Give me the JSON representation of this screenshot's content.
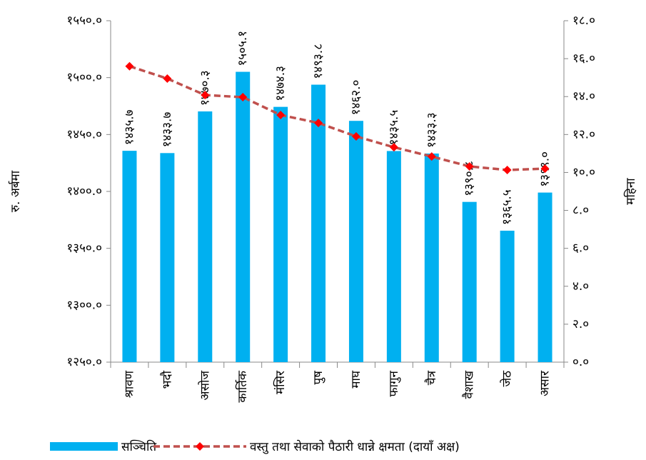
{
  "chart_data": {
    "type": "bar_line",
    "y_label": "रु. अर्बमा",
    "y2_label": "महिना",
    "categories": [
      "श्रावण",
      "भदौ",
      "असोज",
      "कार्तिक",
      "मंसिर",
      "पुष",
      "माघ",
      "फागुन",
      "चैत्र",
      "वैशाख",
      "जेठ",
      "असार"
    ],
    "series": [
      {
        "name": "सञ्चिति",
        "type": "bar",
        "color": "#00b0f0",
        "values": [
          1435.7,
          1433.7,
          1470.3,
          1505.1,
          1474.3,
          1493.8,
          1462.0,
          1435.5,
          1433.3,
          1390.8,
          1365.5,
          1399.0
        ],
        "value_labels": [
          "१४३५.७",
          "१४३३.७",
          "१४७०.३",
          "१५०५.१",
          "१४७४.३",
          "१४९३.८",
          "१४६२.०",
          "१४३५.५",
          "१४३३.३",
          "१३९०.८",
          "१३६५.५",
          "१३९९.०"
        ]
      },
      {
        "name": "वस्तु तथा सेवाको पैठारी धान्ने क्षमता (दायाँ अक्ष)",
        "type": "line",
        "axis": "y2",
        "color": "#c0504d",
        "marker_color": "#ff0000",
        "values": [
          15.6,
          14.95,
          14.08,
          13.97,
          13.03,
          12.61,
          11.9,
          11.33,
          10.84,
          10.32,
          10.13,
          10.2
        ]
      }
    ],
    "ylim": [
      1250,
      1550
    ],
    "yticks": [
      {
        "value": 1250,
        "label": "१२५०.०"
      },
      {
        "value": 1300,
        "label": "१३००.०"
      },
      {
        "value": 1350,
        "label": "१३५०.०"
      },
      {
        "value": 1400,
        "label": "१४००.०"
      },
      {
        "value": 1450,
        "label": "१४५०.०"
      },
      {
        "value": 1500,
        "label": "१५००.०"
      },
      {
        "value": 1550,
        "label": "१५५०.०"
      }
    ],
    "y2lim": [
      0,
      18
    ],
    "y2ticks": [
      {
        "value": 0,
        "label": "०.०"
      },
      {
        "value": 2,
        "label": "२.०"
      },
      {
        "value": 4,
        "label": "४.०"
      },
      {
        "value": 6,
        "label": "६.०"
      },
      {
        "value": 8,
        "label": "८.०"
      },
      {
        "value": 10,
        "label": "१०.०"
      },
      {
        "value": 12,
        "label": "१२.०"
      },
      {
        "value": 14,
        "label": "१४.०"
      },
      {
        "value": 16,
        "label": "१६.०"
      },
      {
        "value": 18,
        "label": "१८.०"
      }
    ]
  }
}
